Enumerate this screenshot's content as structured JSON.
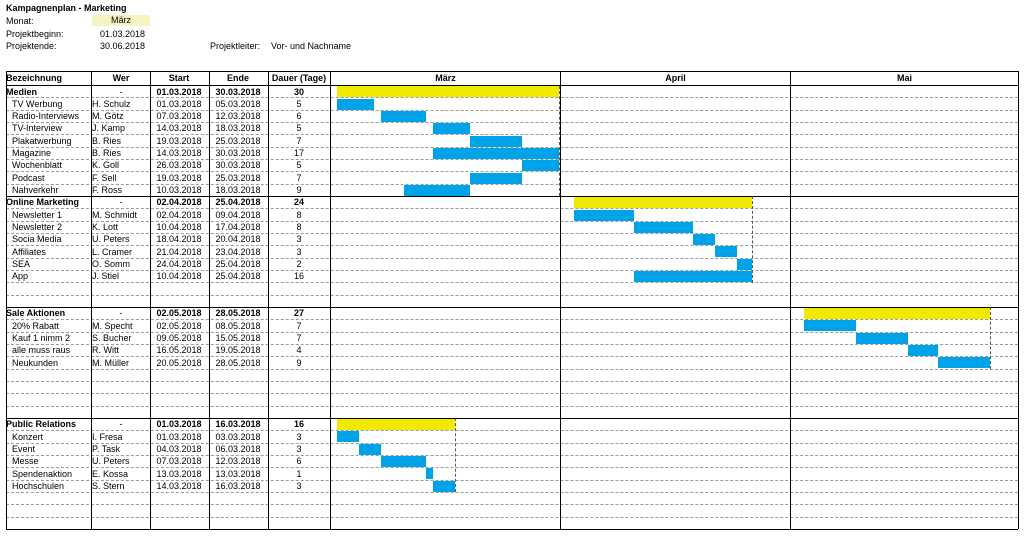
{
  "header": {
    "title": "Kampagnenplan - Marketing",
    "month_label": "Monat:",
    "month_value": "März",
    "start_label": "Projektbeginn:",
    "start_value": "01.03.2018",
    "end_label": "Projektende:",
    "end_value": "30.06.2018",
    "leader_label": "Projektleiter:",
    "leader_value": "Vor- und Nachname"
  },
  "columns": {
    "name": "Bezeichnung",
    "who": "Wer",
    "start": "Start",
    "end": "Ende",
    "duration": "Dauer (Tage)",
    "months": [
      "März",
      "April",
      "Mai"
    ]
  },
  "colors": {
    "summary_bar": "#f0ea00",
    "task_bar": "#00a2e8"
  },
  "rows": [
    {
      "name": "Medien",
      "who": "-",
      "start": "01.03.2018",
      "end": "30.03.2018",
      "dur": "30",
      "group": true
    },
    {
      "name": "TV Werbung",
      "who": "H. Schulz",
      "start": "01.03.2018",
      "end": "05.03.2018",
      "dur": "5"
    },
    {
      "name": "Radio-Interviews",
      "who": "M. Götz",
      "start": "07.03.2018",
      "end": "12.03.2018",
      "dur": "6"
    },
    {
      "name": "TV-Interview",
      "who": "J. Kamp",
      "start": "14.03.2018",
      "end": "18.03.2018",
      "dur": "5"
    },
    {
      "name": "Plakatwerbung",
      "who": "B. Ries",
      "start": "19.03.2018",
      "end": "25.03.2018",
      "dur": "7"
    },
    {
      "name": "Magazine",
      "who": "B. Ries",
      "start": "14.03.2018",
      "end": "30.03.2018",
      "dur": "17"
    },
    {
      "name": "Wochenblatt",
      "who": "K. Goll",
      "start": "26.03.2018",
      "end": "30.03.2018",
      "dur": "5"
    },
    {
      "name": "Podcast",
      "who": "F. Sell",
      "start": "19.03.2018",
      "end": "25.03.2018",
      "dur": "7"
    },
    {
      "name": "Nahverkehr",
      "who": "F. Ross",
      "start": "10.03.2018",
      "end": "18.03.2018",
      "dur": "9"
    },
    {
      "name": "Online Marketing",
      "who": "-",
      "start": "02.04.2018",
      "end": "25.04.2018",
      "dur": "24",
      "group": true
    },
    {
      "name": "Newsletter 1",
      "who": "M. Schmidt",
      "start": "02.04.2018",
      "end": "09.04.2018",
      "dur": "8"
    },
    {
      "name": "Newsletter 2",
      "who": "K. Lott",
      "start": "10.04.2018",
      "end": "17.04.2018",
      "dur": "8"
    },
    {
      "name": "Socia Media",
      "who": "U. Peters",
      "start": "18.04.2018",
      "end": "20.04.2018",
      "dur": "3"
    },
    {
      "name": "Affiliates",
      "who": "L. Cramer",
      "start": "21.04.2018",
      "end": "23.04.2018",
      "dur": "3"
    },
    {
      "name": "SEA",
      "who": "O. Somm",
      "start": "24.04.2018",
      "end": "25.04.2018",
      "dur": "2"
    },
    {
      "name": "App",
      "who": "J. Stiel",
      "start": "10.04.2018",
      "end": "25.04.2018",
      "dur": "16"
    },
    {
      "empty": true
    },
    {
      "empty": true
    },
    {
      "name": "Sale Aktionen",
      "who": "-",
      "start": "02.05.2018",
      "end": "28.05.2018",
      "dur": "27",
      "group": true
    },
    {
      "name": "20% Rabatt",
      "who": "M. Specht",
      "start": "02.05.2018",
      "end": "08.05.2018",
      "dur": "7"
    },
    {
      "name": "Kauf 1 nimm 2",
      "who": "S. Bucher",
      "start": "09.05.2018",
      "end": "15.05.2018",
      "dur": "7"
    },
    {
      "name": "alle muss raus",
      "who": "R. Witt",
      "start": "16.05.2018",
      "end": "19.05.2018",
      "dur": "4"
    },
    {
      "name": "Neukunden",
      "who": "M. Müller",
      "start": "20.05.2018",
      "end": "28.05.2018",
      "dur": "9"
    },
    {
      "empty": true
    },
    {
      "empty": true
    },
    {
      "empty": true
    },
    {
      "empty": true
    },
    {
      "name": "Public Relations",
      "who": "-",
      "start": "01.03.2018",
      "end": "16.03.2018",
      "dur": "16",
      "group": true
    },
    {
      "name": "Konzert",
      "who": "I. Fresa",
      "start": "01.03.2018",
      "end": "03.03.2018",
      "dur": "3"
    },
    {
      "name": "Event",
      "who": "P. Task",
      "start": "04.03.2018",
      "end": "06.03.2018",
      "dur": "3"
    },
    {
      "name": "Messe",
      "who": "U. Peters",
      "start": "07.03.2018",
      "end": "12.03.2018",
      "dur": "6"
    },
    {
      "name": "Spendenaktion",
      "who": "E. Kossa",
      "start": "13.03.2018",
      "end": "13.03.2018",
      "dur": "1"
    },
    {
      "name": "Hochschulen",
      "who": "S. Stern",
      "start": "14.03.2018",
      "end": "16.03.2018",
      "dur": "3"
    },
    {
      "empty": true
    },
    {
      "empty": true
    },
    {
      "empty": true
    }
  ]
}
